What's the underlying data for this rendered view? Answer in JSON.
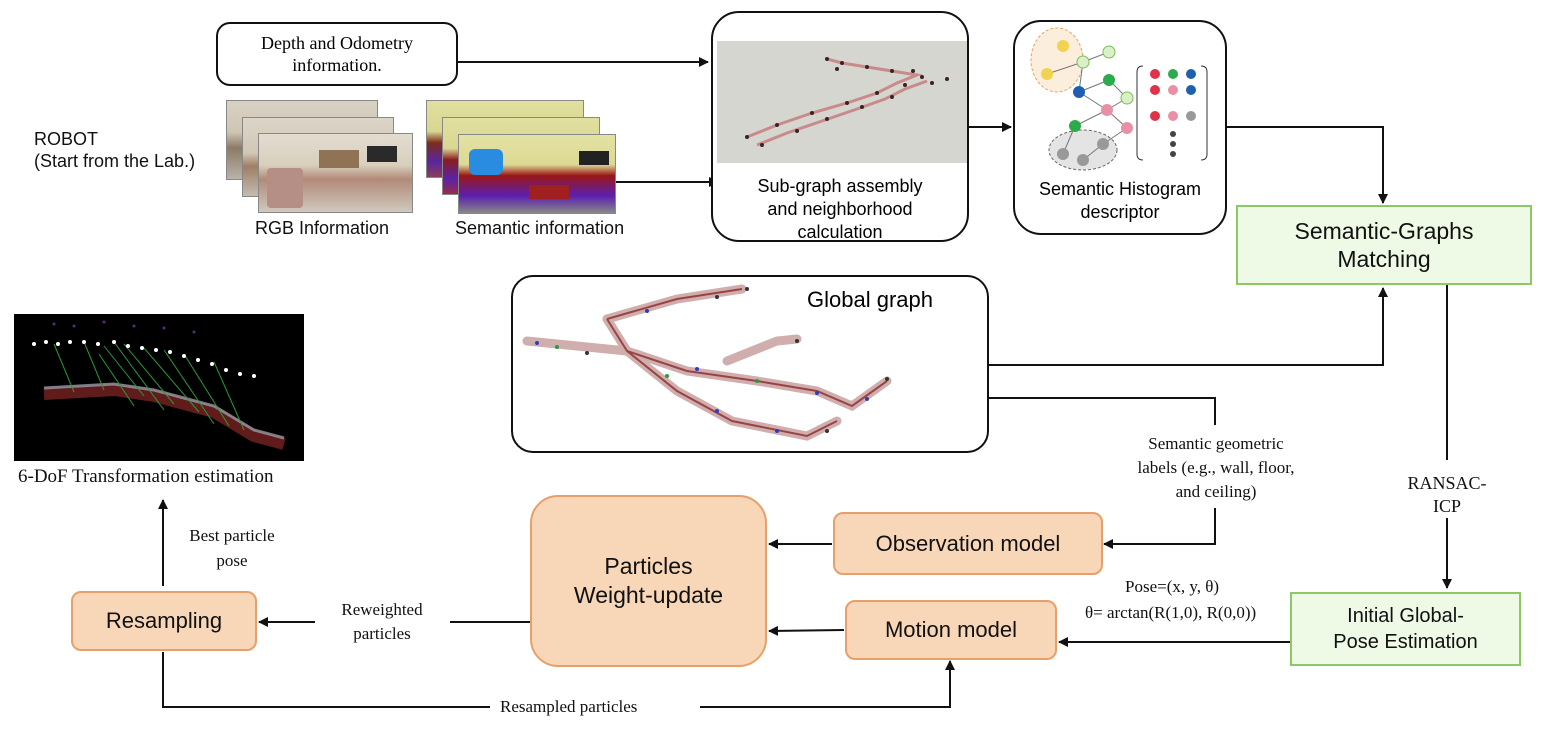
{
  "robot": {
    "line1": "ROBOT",
    "line2": "(Start from the Lab.)"
  },
  "depth_box": {
    "line1": "Depth and Odometry",
    "line2": "information."
  },
  "rgb_label": "RGB Information",
  "semantic_label": "Semantic information",
  "subgraph": {
    "line1": "Sub-graph assembly",
    "line2": "and neighborhood",
    "line3": "calculation"
  },
  "histogram": {
    "line1": "Semantic Histogram",
    "line2": "descriptor"
  },
  "matching": {
    "line1": "Semantic-Graphs",
    "line2": "Matching"
  },
  "global_graph": "Global graph",
  "ransac": {
    "line1": "RANSAC-",
    "line2": "ICP"
  },
  "initial_pose": {
    "line1": "Initial Global-",
    "line2": "Pose Estimation"
  },
  "semantic_labels": {
    "line1": "Semantic geometric",
    "line2": "labels (e.g., wall, floor,",
    "line3": "and ceiling)"
  },
  "observation_model": "Observation model",
  "motion_model": "Motion model",
  "weight_update": {
    "line1": "Particles",
    "line2": "Weight-update"
  },
  "pose": {
    "line1": "Pose=(x, y, θ)",
    "line2": "θ= arctan(R(1,0), R(0,0))"
  },
  "resampling": "Resampling",
  "reweighted": {
    "line1": "Reweighted",
    "line2": "particles"
  },
  "resampled": "Resampled particles",
  "best_particle": {
    "line1": "Best particle",
    "line2": "pose"
  },
  "transform_label": "6-DoF Transformation estimation",
  "colors": {
    "green_border": "#8cc866",
    "green_fill": "#eef9e6",
    "orange_border": "#e8a06a",
    "orange_fill": "#f8d6b8"
  }
}
